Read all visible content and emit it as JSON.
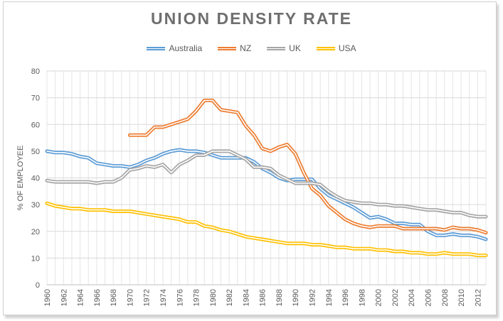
{
  "chart_data": {
    "type": "line",
    "title": "UNION DENSITY RATE",
    "xlabel": "",
    "ylabel": "% OF EMPLOYEE",
    "xlim": [
      1960,
      2013
    ],
    "ylim": [
      0,
      80
    ],
    "yticks": [
      0,
      10,
      20,
      30,
      40,
      50,
      60,
      70,
      80
    ],
    "xticks": [
      1960,
      1962,
      1964,
      1966,
      1968,
      1970,
      1972,
      1974,
      1976,
      1978,
      1980,
      1982,
      1984,
      1986,
      1988,
      1990,
      1992,
      1994,
      1996,
      1998,
      2000,
      2002,
      2004,
      2006,
      2008,
      2010,
      2012
    ],
    "grid": true,
    "legend_position": "top",
    "series": [
      {
        "name": "Australia",
        "color": "#5b9bd5",
        "x": [
          1960,
          1961,
          1962,
          1963,
          1964,
          1965,
          1966,
          1967,
          1968,
          1969,
          1970,
          1971,
          1972,
          1973,
          1974,
          1975,
          1976,
          1977,
          1978,
          1979,
          1980,
          1981,
          1982,
          1983,
          1984,
          1985,
          1986,
          1987,
          1988,
          1989,
          1990,
          1991,
          1992,
          1993,
          1994,
          1995,
          1996,
          1997,
          1998,
          1999,
          2000,
          2001,
          2002,
          2003,
          2004,
          2005,
          2006,
          2007,
          2008,
          2009,
          2010,
          2011,
          2012,
          2013
        ],
        "values": [
          50,
          49.5,
          49.5,
          49,
          48,
          47.5,
          45.5,
          45,
          44.5,
          44.5,
          44,
          45,
          46.5,
          47.5,
          49,
          50,
          50.5,
          50,
          50,
          49.5,
          48.5,
          47.5,
          47.5,
          47.5,
          47.5,
          46,
          43.5,
          42,
          40,
          39,
          39.5,
          39.5,
          39.5,
          36,
          33.5,
          32,
          30.5,
          29,
          27,
          25,
          25.5,
          24.5,
          23,
          23,
          22.5,
          22.5,
          20,
          18.5,
          18.5,
          19,
          18.5,
          18.5,
          18,
          17
        ]
      },
      {
        "name": "NZ",
        "color": "#ed7d31",
        "x": [
          1970,
          1971,
          1972,
          1973,
          1974,
          1975,
          1976,
          1977,
          1978,
          1979,
          1980,
          1981,
          1982,
          1983,
          1984,
          1985,
          1986,
          1987,
          1988,
          1989,
          1990,
          1991,
          1992,
          1993,
          1994,
          1995,
          1996,
          1997,
          1998,
          1999,
          2000,
          2001,
          2002,
          2003,
          2004,
          2005,
          2006,
          2007,
          2008,
          2009,
          2010,
          2011,
          2012,
          2013
        ],
        "values": [
          56,
          56,
          56,
          59,
          59,
          60,
          61,
          62,
          65,
          69,
          69,
          65.5,
          65,
          64.5,
          59.5,
          56,
          51,
          50,
          51.5,
          52.5,
          49,
          42,
          36,
          33.5,
          29.5,
          27,
          24.5,
          23,
          22,
          21.5,
          22,
          22,
          22,
          21,
          21,
          21,
          21,
          21,
          20.5,
          21.5,
          21,
          21,
          20.5,
          19.5
        ]
      },
      {
        "name": "UK",
        "color": "#a5a5a5",
        "x": [
          1960,
          1961,
          1962,
          1963,
          1964,
          1965,
          1966,
          1967,
          1968,
          1969,
          1970,
          1971,
          1972,
          1973,
          1974,
          1975,
          1976,
          1977,
          1978,
          1979,
          1980,
          1981,
          1982,
          1983,
          1984,
          1985,
          1986,
          1987,
          1988,
          1989,
          1990,
          1991,
          1992,
          1993,
          1994,
          1995,
          1996,
          1997,
          1998,
          1999,
          2000,
          2001,
          2002,
          2003,
          2004,
          2005,
          2006,
          2007,
          2008,
          2009,
          2010,
          2011,
          2012,
          2013
        ],
        "values": [
          39,
          38.5,
          38.5,
          38.5,
          38.5,
          38.5,
          38,
          38.5,
          38.5,
          40,
          43,
          43.5,
          44.5,
          44,
          45,
          42,
          45,
          46.5,
          48.5,
          48.5,
          50,
          50,
          50,
          48.5,
          47,
          44,
          44,
          43.5,
          41,
          39.5,
          38,
          38,
          38,
          37.5,
          35,
          33,
          31.5,
          31,
          30.5,
          30.5,
          30,
          30,
          29.5,
          29.5,
          29,
          28.5,
          28,
          28,
          27.5,
          27,
          27,
          26,
          25.5,
          25.5
        ]
      },
      {
        "name": "USA",
        "color": "#ffc000",
        "x": [
          1960,
          1961,
          1962,
          1963,
          1964,
          1965,
          1966,
          1967,
          1968,
          1969,
          1970,
          1971,
          1972,
          1973,
          1974,
          1975,
          1976,
          1977,
          1978,
          1979,
          1980,
          1981,
          1982,
          1983,
          1984,
          1985,
          1986,
          1987,
          1988,
          1989,
          1990,
          1991,
          1992,
          1993,
          1994,
          1995,
          1996,
          1997,
          1998,
          1999,
          2000,
          2001,
          2002,
          2003,
          2004,
          2005,
          2006,
          2007,
          2008,
          2009,
          2010,
          2011,
          2012,
          2013
        ],
        "values": [
          30.5,
          29.5,
          29,
          28.5,
          28.5,
          28,
          28,
          28,
          27.5,
          27.5,
          27.5,
          27,
          26.5,
          26,
          25.5,
          25,
          24.5,
          23.5,
          23.5,
          22,
          21.5,
          20.5,
          20,
          19,
          18,
          17.5,
          17,
          16.5,
          16,
          15.5,
          15.5,
          15.5,
          15,
          15,
          14.5,
          14,
          14,
          13.5,
          13.5,
          13.5,
          13,
          13,
          12.5,
          12.5,
          12,
          12,
          11.5,
          11.5,
          12,
          11.5,
          11.5,
          11.5,
          11,
          11
        ]
      }
    ]
  }
}
